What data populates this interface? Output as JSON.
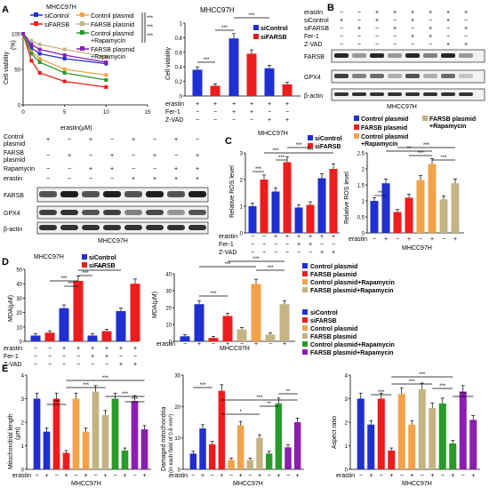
{
  "panels": {
    "A": "A",
    "B": "B",
    "C": "C",
    "D": "D",
    "E": "E"
  },
  "cell": "MHCC97H",
  "labels": {
    "erastin": "erastin",
    "erastin_um": "erastin(μM)",
    "fer1": "Fer-1",
    "zvad": "Z-VAD",
    "rapamycin": "Rapamycin",
    "control_plasmid": "Control plasmid",
    "fsb_plasmid": "FARSB plasmid",
    "farsb": "FARSB",
    "gpx4": "GPX4",
    "bactin": "β-actin",
    "cell_viability": "Cell viability",
    "cv_pct": "(%)",
    "rel_ros": "Relative ROS level",
    "mda": "MDA(μM)",
    "mito_len": "Mitochondrial length",
    "mito_len_unit": "(μm)",
    "dmg": "Damaged mitochondria",
    "dmg_unit": "(in each field of 0.6 mm²)",
    "aspect": "Aspect ratio",
    "plus": "+",
    "minus": "−",
    "sig3": "***",
    "sig2": "**",
    "sig1": "*"
  },
  "legends": {
    "sictrl": "siControl",
    "sifarsb": "siFARSB",
    "ctrlp": "Control plasmid",
    "fsbp": "FARSB plasmid",
    "ctrlrapa": "Control plasmid+Rapamycin",
    "fsbrapa": "FARSB plasmid+Rapamycin",
    "ctrlrapa_a": "Control plasmid",
    "ctrlrapa_b": "+Rapamycin",
    "fsbrapa_a": "FARSB plasmid",
    "fsbrapa_b": "+Rapamycin"
  },
  "colors": {
    "blue": "#1f2fd0",
    "red": "#ee1c1c",
    "orange": "#f4a24a",
    "khaki": "#c4b483",
    "green": "#2a9a2a",
    "purple": "#8b1fb0",
    "lblue": "#5b6ff0",
    "lred": "#f07070"
  },
  "chart_data": [
    {
      "panel": "A",
      "type": "line",
      "xlabel": "erastin(μM)",
      "ylabel": "Cell viability (%)",
      "x": [
        0,
        1,
        2,
        5,
        10
      ],
      "xticks": [
        0,
        5,
        10,
        15
      ],
      "yticks": [
        0,
        50,
        100
      ],
      "xlim": [
        0,
        15
      ],
      "ylim": [
        0,
        100
      ],
      "series": [
        {
          "name": "siControl",
          "values": [
            100,
            80,
            72,
            65,
            58
          ]
        },
        {
          "name": "siFARSB",
          "values": [
            100,
            62,
            45,
            33,
            25
          ]
        },
        {
          "name": "Control plasmid",
          "values": [
            100,
            75,
            65,
            50,
            42
          ]
        },
        {
          "name": "FARSB plasmid",
          "values": [
            100,
            90,
            85,
            78,
            68
          ]
        },
        {
          "name": "Control plasmid +Rapamycin",
          "values": [
            100,
            72,
            60,
            45,
            35
          ]
        },
        {
          "name": "FARSB plasmid +Rapamycin",
          "values": [
            100,
            85,
            78,
            70,
            60
          ]
        }
      ]
    },
    {
      "panel": "A",
      "type": "bar",
      "ylabel": "Cell viability",
      "ylim": [
        0,
        1.0
      ],
      "yticks": [
        0,
        0.2,
        0.4,
        0.6,
        0.8,
        1.0
      ],
      "series": [
        {
          "name": "siControl",
          "values": [
            0.36,
            0.79,
            0.38
          ]
        },
        {
          "name": "siFARSB",
          "values": [
            0.14,
            0.58,
            0.16
          ]
        }
      ],
      "values": [
        0.36,
        0.14,
        0.79,
        0.58,
        0.38,
        0.16
      ]
    },
    {
      "panel": "C",
      "type": "bar",
      "ylabel": "Relative ROS level",
      "ylim": [
        0,
        3
      ],
      "yticks": [
        0,
        1,
        2,
        3
      ],
      "values": [
        1.0,
        2.0,
        1.55,
        2.65,
        0.95,
        1.05,
        2.05,
        2.4
      ]
    },
    {
      "panel": "C",
      "type": "bar",
      "ylabel": "Relative ROS level",
      "ylim": [
        0,
        2.5
      ],
      "yticks": [
        0,
        0.5,
        1.0,
        1.5,
        2.0,
        2.5
      ],
      "values": [
        1.0,
        1.55,
        0.65,
        1.1,
        1.65,
        2.15,
        1.05,
        1.55
      ]
    },
    {
      "panel": "D",
      "type": "bar",
      "ylabel": "MDA(μM)",
      "ylim": [
        0,
        50
      ],
      "yticks": [
        0,
        10,
        20,
        30,
        40,
        50
      ],
      "values": [
        4,
        6,
        23,
        42,
        4,
        7,
        21,
        40
      ]
    },
    {
      "panel": "D",
      "type": "bar",
      "ylabel": "MDA(μM)",
      "ylim": [
        0,
        40
      ],
      "yticks": [
        0,
        10,
        20,
        30,
        40
      ],
      "values": [
        3,
        22,
        2,
        15,
        7,
        34,
        4,
        22
      ]
    },
    {
      "panel": "E",
      "type": "bar",
      "ylabel": "Mitochondrial length (μm)",
      "ylim": [
        0,
        4
      ],
      "yticks": [
        0,
        1,
        2,
        3,
        4
      ],
      "values": [
        3.0,
        1.6,
        3.0,
        0.7,
        3.0,
        1.6,
        3.3,
        2.3,
        3.0,
        0.8,
        2.9,
        1.7
      ]
    },
    {
      "panel": "E",
      "type": "bar",
      "ylabel": "Damaged mitochondria (in each field of 0.6 mm²)",
      "ylim": [
        0,
        30
      ],
      "yticks": [
        0,
        10,
        20,
        30
      ],
      "values": [
        5,
        13,
        8,
        25,
        3,
        14,
        3,
        10,
        5,
        21,
        7,
        15
      ]
    },
    {
      "panel": "E",
      "type": "bar",
      "ylabel": "Aspect ratio",
      "ylim": [
        0,
        4
      ],
      "yticks": [
        0,
        1,
        2,
        3,
        4
      ],
      "values": [
        3.0,
        1.9,
        3.0,
        0.8,
        3.2,
        1.9,
        3.4,
        2.6,
        2.8,
        1.1,
        3.3,
        2.1
      ]
    }
  ]
}
